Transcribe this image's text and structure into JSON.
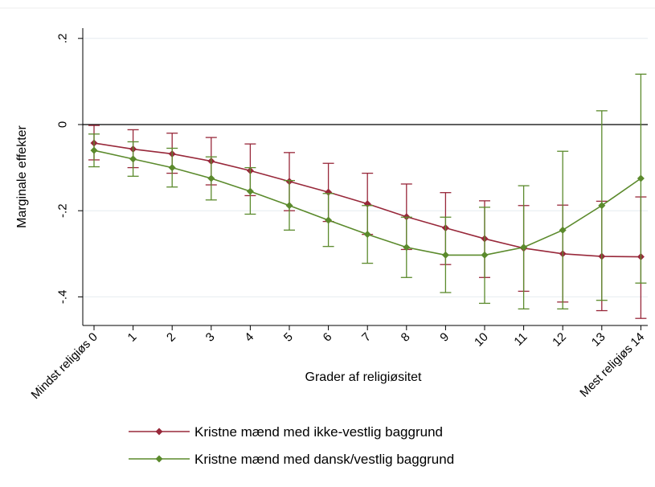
{
  "chart_data": {
    "type": "line",
    "xlabel": "Grader af religiøsitet",
    "ylabel": "Marginale effekter",
    "x": [
      0,
      1,
      2,
      3,
      4,
      5,
      6,
      7,
      8,
      9,
      10,
      11,
      12,
      13,
      14
    ],
    "x_tick_labels": [
      "Mindst religiøs 0",
      "1",
      "2",
      "3",
      "4",
      "5",
      "6",
      "7",
      "8",
      "9",
      "10",
      "11",
      "12",
      "13",
      "Mest religiøs 14"
    ],
    "y_ticks": [
      0.2,
      0,
      -0.2,
      -0.4
    ],
    "y_tick_labels": [
      ".2",
      "0",
      "-.2",
      "-.4"
    ],
    "ylim": [
      -0.47,
      0.21
    ],
    "xlim": [
      -0.3,
      14.3
    ],
    "reference_line_y": 0,
    "grid": true,
    "legend_position": "bottom",
    "series": [
      {
        "name": "Kristne mænd med ikke-vestlig baggrund",
        "color": "#98283a",
        "values": [
          -0.043,
          -0.057,
          -0.068,
          -0.085,
          -0.107,
          -0.132,
          -0.157,
          -0.184,
          -0.214,
          -0.24,
          -0.265,
          -0.287,
          -0.3,
          -0.306,
          -0.307
        ],
        "ci_low": [
          -0.082,
          -0.1,
          -0.113,
          -0.14,
          -0.165,
          -0.2,
          -0.225,
          -0.255,
          -0.29,
          -0.325,
          -0.355,
          -0.387,
          -0.412,
          -0.432,
          -0.45
        ],
        "ci_high": [
          -0.002,
          -0.012,
          -0.02,
          -0.03,
          -0.045,
          -0.065,
          -0.09,
          -0.113,
          -0.138,
          -0.158,
          -0.177,
          -0.188,
          -0.187,
          -0.178,
          -0.168
        ]
      },
      {
        "name": "Kristne mænd med dansk/vestlig baggrund",
        "color": "#5b8a2c",
        "values": [
          -0.06,
          -0.08,
          -0.1,
          -0.125,
          -0.155,
          -0.188,
          -0.222,
          -0.255,
          -0.285,
          -0.303,
          -0.303,
          -0.285,
          -0.245,
          -0.188,
          -0.125
        ],
        "ci_low": [
          -0.098,
          -0.12,
          -0.145,
          -0.175,
          -0.208,
          -0.245,
          -0.283,
          -0.322,
          -0.355,
          -0.39,
          -0.415,
          -0.428,
          -0.428,
          -0.408,
          -0.368
        ],
        "ci_high": [
          -0.022,
          -0.04,
          -0.055,
          -0.075,
          -0.1,
          -0.13,
          -0.16,
          -0.188,
          -0.215,
          -0.215,
          -0.192,
          -0.142,
          -0.062,
          0.032,
          0.117
        ]
      }
    ]
  }
}
